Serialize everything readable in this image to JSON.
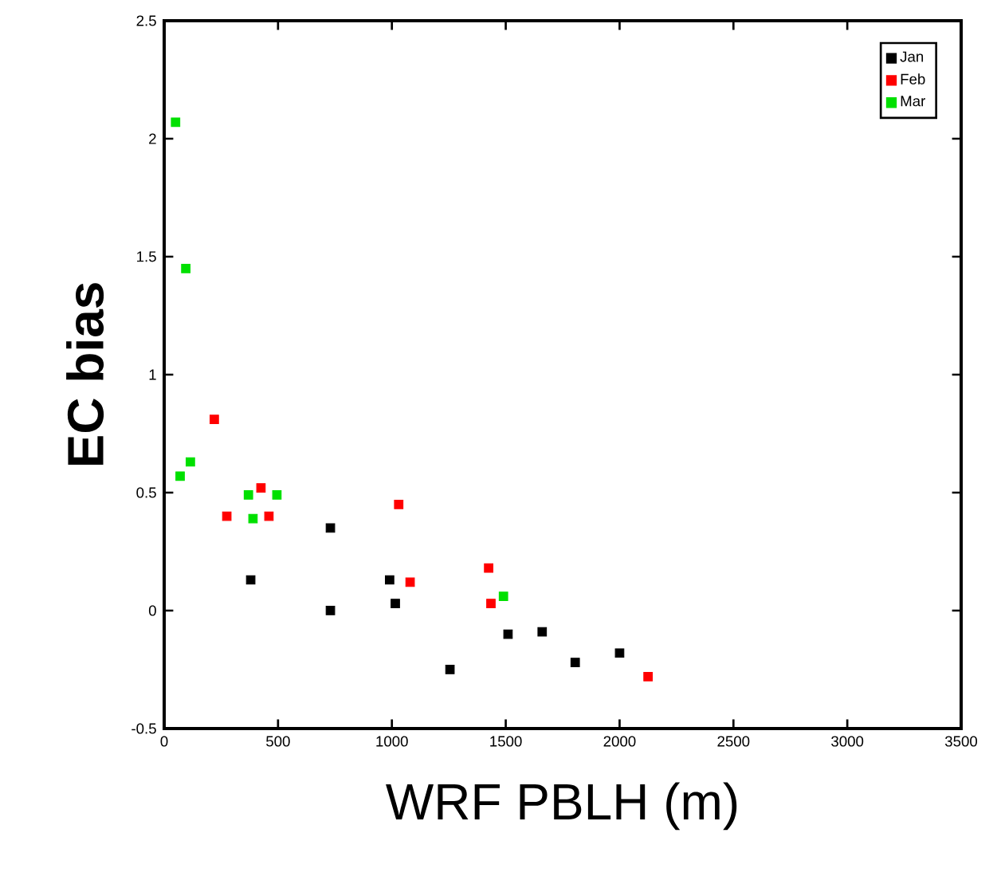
{
  "chart_data": {
    "type": "scatter",
    "xlabel": "WRF PBLH (m)",
    "ylabel": "EC bias",
    "xlim": [
      0,
      3500
    ],
    "xticks": [
      0,
      500,
      1000,
      1500,
      2000,
      2500,
      3000,
      3500
    ],
    "ylim": [
      -0.5,
      2.5
    ],
    "yticks": [
      -0.5,
      0,
      0.5,
      1,
      1.5,
      2,
      2.5
    ],
    "legend": "top right",
    "marker": "square",
    "grid": false,
    "series": [
      {
        "name": "Jan",
        "color": "#000000",
        "x": [
          380,
          730,
          730,
          990,
          1015,
          1255,
          1510,
          1660,
          1805,
          2000
        ],
        "values": [
          0.13,
          0.0,
          0.35,
          0.13,
          0.03,
          -0.25,
          -0.1,
          -0.09,
          -0.22,
          -0.18
        ]
      },
      {
        "name": "Feb",
        "color": "#ff0000",
        "x": [
          220,
          275,
          425,
          460,
          1030,
          1080,
          1425,
          1435,
          2125
        ],
        "values": [
          0.81,
          0.4,
          0.52,
          0.4,
          0.45,
          0.12,
          0.18,
          0.03,
          -0.28
        ]
      },
      {
        "name": "Mar",
        "color": "#00e000",
        "x": [
          50,
          95,
          70,
          115,
          370,
          390,
          495,
          1490
        ],
        "values": [
          2.07,
          1.45,
          0.57,
          0.63,
          0.49,
          0.39,
          0.49,
          0.06
        ]
      }
    ]
  }
}
